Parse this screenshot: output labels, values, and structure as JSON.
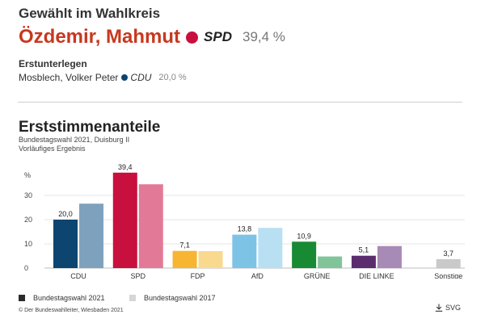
{
  "header": {
    "title": "Gewählt im Wahlkreis",
    "winner_name": "Özdemir, Mahmut",
    "winner_party": "SPD",
    "winner_percent": "39,4 %",
    "winner_color": "#c8103e"
  },
  "runner_up": {
    "label": "Erstunterlegen",
    "name": "Mosblech, Volker Peter",
    "party": "CDU",
    "percent": "20,0 %",
    "color": "#0b4570"
  },
  "chart_data": {
    "type": "bar",
    "title": "Erststimmenanteile",
    "subtitle_lines": [
      "Bundestagswahl 2021, Duisburg II",
      "Vorläufiges Ergebnis"
    ],
    "ylabel": "%",
    "ylim": [
      0,
      40
    ],
    "yticks": [
      0,
      10,
      20,
      30
    ],
    "grid": true,
    "categories": [
      "CDU",
      "SPD",
      "FDP",
      "AfD",
      "GRÜNE",
      "DIE LINKE",
      "Sonstige"
    ],
    "series": [
      {
        "name": "Bundestagswahl 2021",
        "values": [
          20.0,
          39.4,
          7.1,
          13.8,
          10.9,
          5.1,
          3.7
        ],
        "labels": [
          "20,0",
          "39,4",
          "7,1",
          "13,8",
          "10,9",
          "5,1",
          "3,7"
        ],
        "colors": [
          "#0b4570",
          "#c8103e",
          "#f7b531",
          "#7cc3e6",
          "#178a33",
          "#5c2d6e",
          "#c9c9c9"
        ]
      },
      {
        "name": "Bundestagswahl 2017",
        "values": [
          26.6,
          34.6,
          7.0,
          16.6,
          4.8,
          9.1,
          0
        ],
        "colors": [
          "#7ea2bd",
          "#e27a97",
          "#f9d98e",
          "#b9dff2",
          "#82c49a",
          "#a88ab6",
          "#e2e2e2"
        ]
      }
    ],
    "legend": [
      {
        "label": "Bundestagswahl 2021",
        "color": "#2b2b2b"
      },
      {
        "label": "Bundestagswahl 2017",
        "color": "#d6d6d6"
      }
    ],
    "legend_position": "bottom-left"
  },
  "footer": {
    "credit": "© Der Bundeswahlleiter, Wiesbaden 2021",
    "download_label": "SVG"
  }
}
